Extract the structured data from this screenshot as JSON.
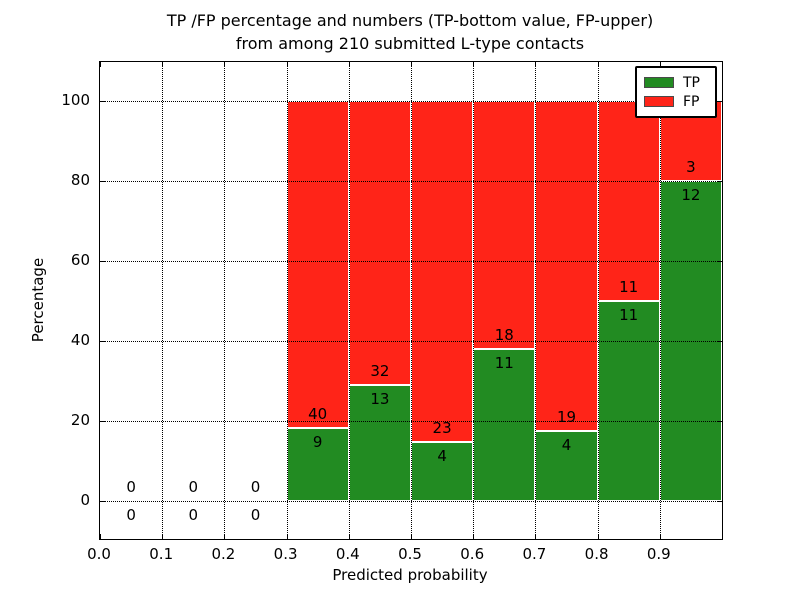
{
  "figure": {
    "title_line1": "TP /FP percentage and numbers (TP-bottom value, FP-upper)",
    "title_line2": "from among 210 submitted L-type contacts",
    "xlabel": "Predicted probability",
    "ylabel": "Percentage"
  },
  "legend": {
    "position": "upper right",
    "items": [
      {
        "label": "TP",
        "color": "#228b22"
      },
      {
        "label": "FP",
        "color": "#ff2418"
      }
    ]
  },
  "colors": {
    "tp_green": "#228b22",
    "fp_red": "#ff2418",
    "grid": "#000000",
    "spine": "#000000",
    "background": "#ffffff"
  },
  "chart_data": {
    "type": "bar",
    "variant": "stacked-percentage-histogram",
    "title": "TP /FP percentage and numbers (TP-bottom value, FP-upper) from among 210 submitted L-type contacts",
    "xlabel": "Predicted probability",
    "ylabel": "Percentage",
    "xlim": [
      0.0,
      1.0
    ],
    "ylim": [
      -10,
      110
    ],
    "grid": "dotted, both axes",
    "legend_position": "upper right",
    "x_tick_values": [
      0.0,
      0.1,
      0.2,
      0.3,
      0.4,
      0.5,
      0.6,
      0.7,
      0.8,
      0.9
    ],
    "x_tick_labels": [
      "0.0",
      "0.1",
      "0.2",
      "0.3",
      "0.4",
      "0.5",
      "0.6",
      "0.7",
      "0.8",
      "0.9"
    ],
    "y_tick_values": [
      0,
      20,
      40,
      60,
      80,
      100
    ],
    "y_tick_labels": [
      "0",
      "20",
      "40",
      "60",
      "80",
      "100"
    ],
    "bin_edges": [
      0.0,
      0.1,
      0.2,
      0.3,
      0.4,
      0.5,
      0.6,
      0.7,
      0.8,
      0.9,
      1.0
    ],
    "series": [
      {
        "name": "TP",
        "color": "#228b22",
        "counts": [
          0,
          0,
          0,
          9,
          13,
          4,
          11,
          4,
          11,
          12
        ]
      },
      {
        "name": "FP",
        "color": "#ff2418",
        "counts": [
          0,
          0,
          0,
          40,
          32,
          23,
          18,
          19,
          11,
          3
        ]
      }
    ],
    "tp_percent_by_bin": [
      null,
      null,
      null,
      18.4,
      28.9,
      14.8,
      37.9,
      17.4,
      50.0,
      80.0
    ],
    "bars_normalized_to": 100,
    "annotation_rule": "FP count above TP/FP boundary, TP count below boundary"
  }
}
